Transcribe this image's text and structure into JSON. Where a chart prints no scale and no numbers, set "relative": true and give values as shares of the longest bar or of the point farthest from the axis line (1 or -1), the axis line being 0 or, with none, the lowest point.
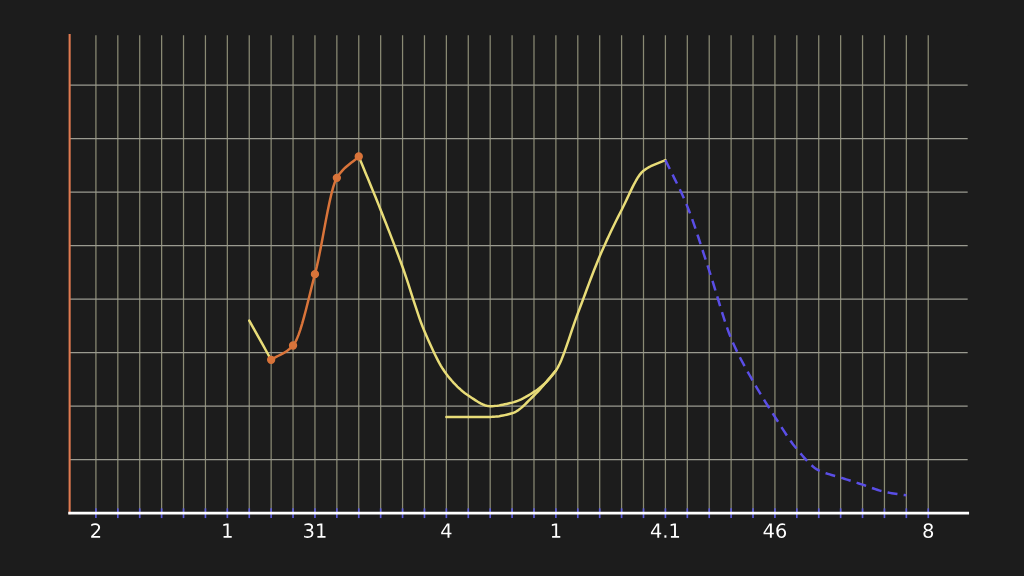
{
  "chart_data": {
    "type": "line",
    "relative": true,
    "grid": true,
    "tick_labels": "x",
    "categories": [
      "2",
      null,
      null,
      null,
      null,
      null,
      "1",
      null,
      null,
      null,
      "31",
      null,
      null,
      null,
      null,
      null,
      "4",
      null,
      null,
      null,
      null,
      "1",
      null,
      null,
      null,
      null,
      "4.1",
      null,
      null,
      null,
      null,
      "46",
      null,
      null,
      null,
      null,
      null,
      null,
      "8"
    ],
    "series": [
      {
        "color": "#e8dc78",
        "marker": "none",
        "line_style": "solid",
        "values": [
          null,
          null,
          null,
          null,
          null,
          null,
          null,
          0.54,
          0.43,
          null,
          null,
          null,
          1.0,
          0.85,
          0.69,
          0.51,
          0.39,
          0.33,
          0.3,
          0.31,
          0.34,
          0.4,
          0.56,
          0.72,
          0.85,
          0.96,
          0.99,
          null,
          null,
          null,
          null,
          null,
          null,
          null,
          null,
          null,
          null,
          null,
          null
        ]
      },
      {
        "color": "#e8dc78",
        "marker": "none",
        "line_style": "solid",
        "values": [
          null,
          null,
          null,
          null,
          null,
          null,
          null,
          null,
          null,
          null,
          null,
          null,
          null,
          null,
          null,
          null,
          0.27,
          0.27,
          0.27,
          0.28,
          0.33,
          0.4,
          null,
          null,
          null,
          null,
          null,
          null,
          null,
          null,
          null,
          null,
          null,
          null,
          null,
          null,
          null,
          null,
          null
        ]
      },
      {
        "color": "#d9743a",
        "marker": "circle",
        "line_style": "solid",
        "values": [
          null,
          null,
          null,
          null,
          null,
          null,
          null,
          null,
          0.43,
          0.47,
          0.67,
          0.94,
          1.0,
          null,
          null,
          null,
          null,
          null,
          null,
          null,
          null,
          null,
          null,
          null,
          null,
          null,
          null,
          null,
          null,
          null,
          null,
          null,
          null,
          null,
          null,
          null,
          null,
          null,
          null
        ]
      },
      {
        "color": "#5a4ee6",
        "marker": "none",
        "line_style": "dashed",
        "values": [
          null,
          null,
          null,
          null,
          null,
          null,
          null,
          null,
          null,
          null,
          null,
          null,
          null,
          null,
          null,
          null,
          null,
          null,
          null,
          null,
          null,
          null,
          null,
          null,
          null,
          null,
          0.99,
          0.86,
          0.68,
          0.49,
          0.37,
          0.27,
          0.18,
          0.12,
          0.1,
          0.08,
          0.06,
          0.05,
          null
        ]
      }
    ]
  }
}
